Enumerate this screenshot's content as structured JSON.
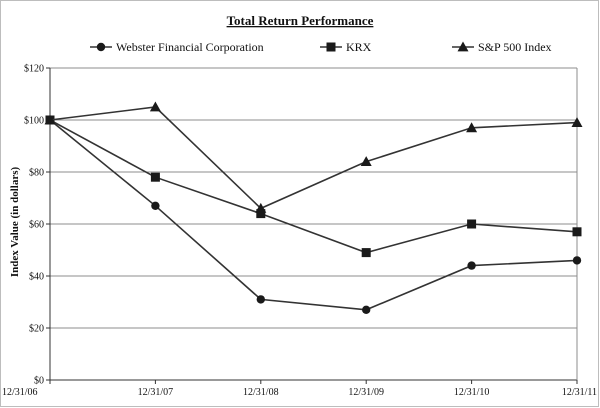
{
  "chart_data": {
    "type": "line",
    "title": "Total Return Performance",
    "xlabel": "",
    "ylabel": "Index Value (in dollars)",
    "categories": [
      "12/31/06",
      "12/31/07",
      "12/31/08",
      "12/31/09",
      "12/31/10",
      "12/31/11"
    ],
    "y_ticks": [
      "$0",
      "$20",
      "$40",
      "$60",
      "$80",
      "$100",
      "$120"
    ],
    "ylim": [
      0,
      120
    ],
    "grid": "horizontal",
    "legend_position": "top",
    "series": [
      {
        "name": "Webster Financial Corporation",
        "marker": "circle",
        "values": [
          100,
          67,
          31,
          27,
          44,
          46
        ]
      },
      {
        "name": "KRX",
        "marker": "square",
        "values": [
          100,
          78,
          64,
          49,
          60,
          57
        ]
      },
      {
        "name": "S&P 500 Index",
        "marker": "triangle",
        "values": [
          100,
          105,
          66,
          84,
          97,
          99
        ]
      }
    ],
    "colors": {
      "line": "#333333",
      "marker": "#1a1a1a",
      "grid": "#8c8c8c"
    }
  }
}
